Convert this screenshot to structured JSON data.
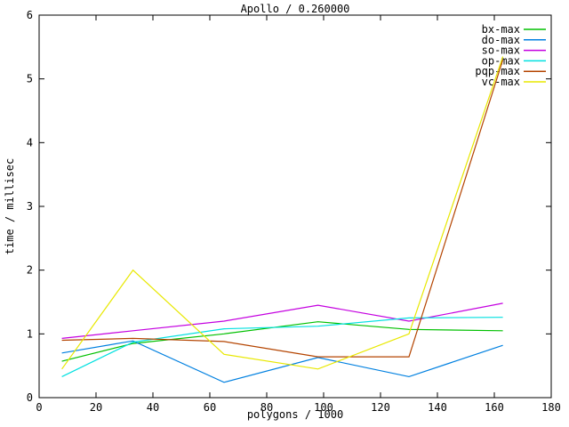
{
  "window": {
    "background": "#ffffff",
    "foreground": "#000000"
  },
  "chart_data": {
    "type": "line",
    "title": "Apollo / 0.260000",
    "xlabel": "polygons / 1000",
    "ylabel": "time / millisec",
    "xlim": [
      0,
      180
    ],
    "ylim": [
      0,
      6
    ],
    "xticks": [
      0,
      20,
      40,
      60,
      80,
      100,
      120,
      140,
      160,
      180
    ],
    "yticks": [
      0,
      1,
      2,
      3,
      4,
      5,
      6
    ],
    "grid": false,
    "legend_position": "top-right-inside",
    "x": [
      8,
      33,
      65,
      98,
      130,
      163
    ],
    "series": [
      {
        "name": "bx-max",
        "color": "#00c000",
        "values": [
          0.57,
          0.85,
          1.0,
          1.19,
          1.07,
          1.05
        ]
      },
      {
        "name": "do-max",
        "color": "#0080e0",
        "values": [
          0.7,
          0.89,
          0.24,
          0.63,
          0.33,
          0.82
        ]
      },
      {
        "name": "so-max",
        "color": "#c400e0",
        "values": [
          0.93,
          1.05,
          1.2,
          1.45,
          1.2,
          1.48
        ]
      },
      {
        "name": "op-max",
        "color": "#00e0e0",
        "values": [
          0.33,
          0.87,
          1.08,
          1.12,
          1.25,
          1.26
        ]
      },
      {
        "name": "pqp-max",
        "color": "#b44400",
        "values": [
          0.9,
          0.93,
          0.88,
          0.64,
          0.64,
          5.3
        ]
      },
      {
        "name": "vc-max",
        "color": "#e8e800",
        "values": [
          0.45,
          2.0,
          0.68,
          0.45,
          1.0,
          5.35
        ]
      }
    ]
  }
}
